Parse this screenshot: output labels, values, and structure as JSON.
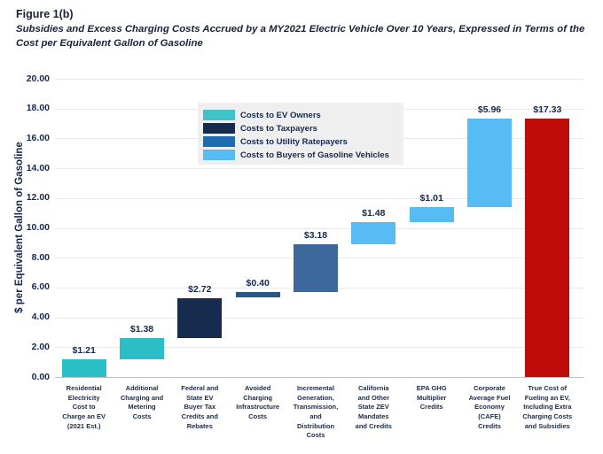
{
  "header": {
    "figure_label": "Figure 1(b)",
    "subtitle": "Subsidies and Excess Charging Costs Accrued by a MY2021 Electric Vehicle Over 10 Years, Expressed in Terms of the Cost per Equivalent Gallon of Gasoline"
  },
  "legend": {
    "items": [
      {
        "label": "Costs to EV Owners",
        "color": "#3ec3c8"
      },
      {
        "label": "Costs to Taxpayers",
        "color": "#152c4e"
      },
      {
        "label": "Costs to Utility Ratepayers",
        "color": "#1f6bb0"
      },
      {
        "label": "Costs to Buyers of Gasoline Vehicles",
        "color": "#57bcf4"
      }
    ]
  },
  "chart_data": {
    "type": "bar",
    "subtype": "waterfall",
    "ylabel": "$ per Equivalent Gallon of Gasoline",
    "ylim": [
      0,
      20
    ],
    "ytick_step": 2,
    "grid": true,
    "legend_position": "inside-top-left",
    "bars": [
      {
        "category": "Residential Electricity Cost to Charge an EV (2021 Est.)",
        "category_lines": [
          "Residential",
          "Electricity",
          "Cost to",
          "Charge an EV",
          "(2021 Est.)"
        ],
        "value": 1.21,
        "data_label": "$1.21",
        "group": "Costs to EV Owners",
        "color": "#2cbec6",
        "total": false
      },
      {
        "category": "Additional Charging and Metering Costs",
        "category_lines": [
          "Additional",
          "Charging and",
          "Metering",
          "Costs"
        ],
        "value": 1.38,
        "data_label": "$1.38",
        "group": "Costs to EV Owners",
        "color": "#2cbec6",
        "total": false
      },
      {
        "category": "Federal and State EV Buyer Tax Credits and Rebates",
        "category_lines": [
          "Federal and",
          "State EV",
          "Buyer Tax",
          "Credits and",
          "Rebates"
        ],
        "value": 2.72,
        "data_label": "$2.72",
        "group": "Costs to Taxpayers",
        "color": "#152c4e",
        "total": false
      },
      {
        "category": "Avoided Charging Infrastructure Costs",
        "category_lines": [
          "Avoided",
          "Charging",
          "Infrastructure",
          "Costs"
        ],
        "value": 0.4,
        "data_label": "$0.40",
        "group": "Costs to Utility Ratepayers",
        "color": "#2b5688",
        "total": false
      },
      {
        "category": "Incremental Generation, Transmission, and Distribution Costs",
        "category_lines": [
          "Incremental",
          "Generation,",
          "Transmission,",
          "and",
          "Distribution",
          "Costs"
        ],
        "value": 3.18,
        "data_label": "$3.18",
        "group": "Costs to Utility Ratepayers",
        "color": "#3d689b",
        "total": false
      },
      {
        "category": "California and Other State ZEV Mandates and Credits",
        "category_lines": [
          "California",
          "and Other",
          "State ZEV",
          "Mandates",
          "and Credits"
        ],
        "value": 1.48,
        "data_label": "$1.48",
        "group": "Costs to Buyers of Gasoline Vehicles",
        "color": "#57bcf4",
        "total": false
      },
      {
        "category": "EPA GHG Multiplier Credits",
        "category_lines": [
          "EPA GHG",
          "Multiplier",
          "Credits"
        ],
        "value": 1.01,
        "data_label": "$1.01",
        "group": "Costs to Buyers of Gasoline Vehicles",
        "color": "#57bcf4",
        "total": false
      },
      {
        "category": "Corporate Average Fuel Economy (CAFE) Credits",
        "category_lines": [
          "Corporate",
          "Average Fuel",
          "Economy",
          "(CAFE)",
          "Credits"
        ],
        "value": 5.96,
        "data_label": "$5.96",
        "group": "Costs to Buyers of Gasoline Vehicles",
        "color": "#57bcf4",
        "total": false
      },
      {
        "category": "True Cost of Fueling an EV, Including Extra Charging Costs and Subsidies",
        "category_lines": [
          "True Cost of",
          "Fueling an EV,",
          "Including Extra",
          "Charging Costs",
          "and Subsidies"
        ],
        "value": 17.33,
        "data_label": "$17.33",
        "group": "True Cost Total",
        "color": "#c00b0b",
        "total": true
      }
    ]
  },
  "colors": {
    "axis_text": "#15294e",
    "grid_line": "#e9e9e9",
    "axis_line": "#c2c2c2",
    "legend_bg": "#efefef",
    "background": "#ffffff"
  }
}
